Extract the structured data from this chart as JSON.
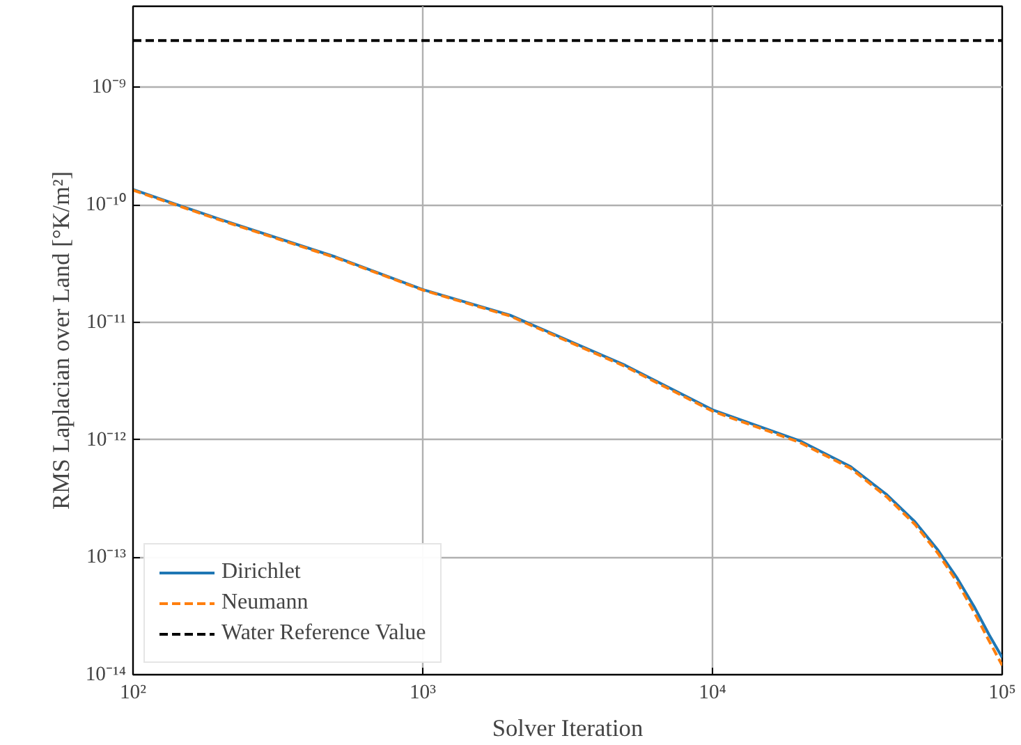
{
  "chart_data": {
    "type": "line",
    "xlabel": "Solver Iteration",
    "ylabel": "RMS Laplacian over Land [°K/m²]",
    "log": "xy",
    "grid": true,
    "legend": "bottom left",
    "line_style": "solid",
    "x": [
      100,
      200,
      500,
      1000,
      2000,
      5000,
      10000,
      20000,
      30000,
      40000,
      50000,
      60000,
      70000,
      80000,
      90000,
      100000
    ],
    "series": [
      {
        "name": "Dirichlet",
        "color": "#1f77b4",
        "values": [
          1.35e-10,
          7.5e-11,
          3.6e-11,
          1.9e-11,
          1.15e-11,
          4.3e-12,
          1.8e-12,
          9.8e-13,
          5.9e-13,
          3.4e-13,
          2e-13,
          1.15e-13,
          6.6e-14,
          3.8e-14,
          2.2e-14,
          1.4e-14
        ]
      },
      {
        "name": "Neumann",
        "color": "#ff7f0e",
        "line_style": "dashed",
        "values": [
          1.33e-10,
          7.4e-11,
          3.55e-11,
          1.88e-11,
          1.13e-11,
          4.2e-12,
          1.75e-12,
          9.5e-13,
          5.7e-13,
          3.25e-13,
          1.9e-13,
          1.08e-13,
          6.1e-14,
          3.4e-14,
          1.95e-14,
          1.2e-14
        ]
      }
    ],
    "ref_lines": [
      {
        "axis": "y",
        "value": 2.5e-09,
        "label": "Water Reference Value",
        "color": "#000000",
        "line_style": "dashed"
      }
    ],
    "xlim": [
      100,
      100000
    ],
    "ylim": [
      1e-14,
      4.9e-09
    ],
    "xticks": [
      {
        "value": 100,
        "label": "10²"
      },
      {
        "value": 1000,
        "label": "10³"
      },
      {
        "value": 10000,
        "label": "10⁴"
      },
      {
        "value": 100000,
        "label": "10⁵"
      }
    ],
    "yticks": [
      {
        "value": 1e-14,
        "label": "10⁻¹⁴"
      },
      {
        "value": 1e-13,
        "label": "10⁻¹³"
      },
      {
        "value": 1e-12,
        "label": "10⁻¹²"
      },
      {
        "value": 1e-11,
        "label": "10⁻¹¹"
      },
      {
        "value": 1e-10,
        "label": "10⁻¹⁰"
      },
      {
        "value": 1e-09,
        "label": "10⁻⁹"
      }
    ]
  }
}
